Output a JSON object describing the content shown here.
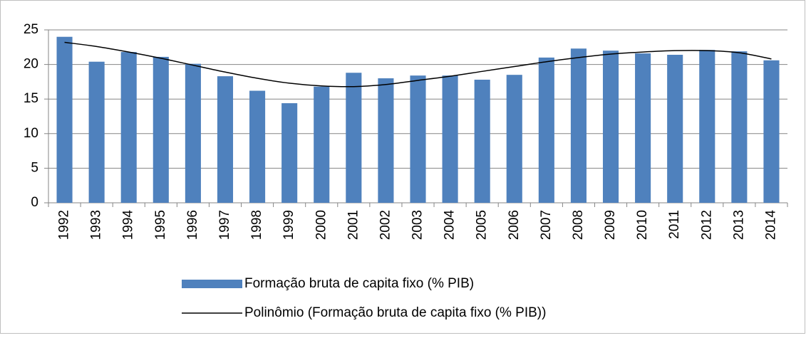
{
  "chart_data": {
    "type": "bar",
    "categories": [
      "1992",
      "1993",
      "1994",
      "1995",
      "1996",
      "1997",
      "1998",
      "1999",
      "2000",
      "2001",
      "2002",
      "2003",
      "2004",
      "2005",
      "2006",
      "2007",
      "2008",
      "2009",
      "2010",
      "2011",
      "2012",
      "2013",
      "2014"
    ],
    "series": [
      {
        "name": "Formação bruta de capita fixo (% PIB)",
        "type": "bar",
        "color": "#4f81bd",
        "values": [
          24.0,
          20.4,
          21.8,
          21.1,
          20.1,
          18.3,
          16.2,
          14.4,
          16.8,
          18.8,
          18.0,
          18.4,
          18.4,
          17.8,
          18.5,
          21.0,
          22.3,
          22.0,
          21.6,
          21.4,
          22.1,
          21.9,
          20.6
        ]
      },
      {
        "name": "Polinômio (Formação bruta de capita fixo (% PIB))",
        "type": "line",
        "color": "#000000",
        "values": [
          23.2,
          22.6,
          21.8,
          20.9,
          19.9,
          18.9,
          18.0,
          17.3,
          16.9,
          16.8,
          17.1,
          17.7,
          18.3,
          19.0,
          19.7,
          20.4,
          21.0,
          21.5,
          21.8,
          22.0,
          22.0,
          21.7,
          20.8
        ]
      }
    ],
    "ylim": [
      0,
      25
    ],
    "yticks": [
      0,
      5,
      10,
      15,
      20,
      25
    ],
    "grid": true,
    "legend": "bottom"
  }
}
